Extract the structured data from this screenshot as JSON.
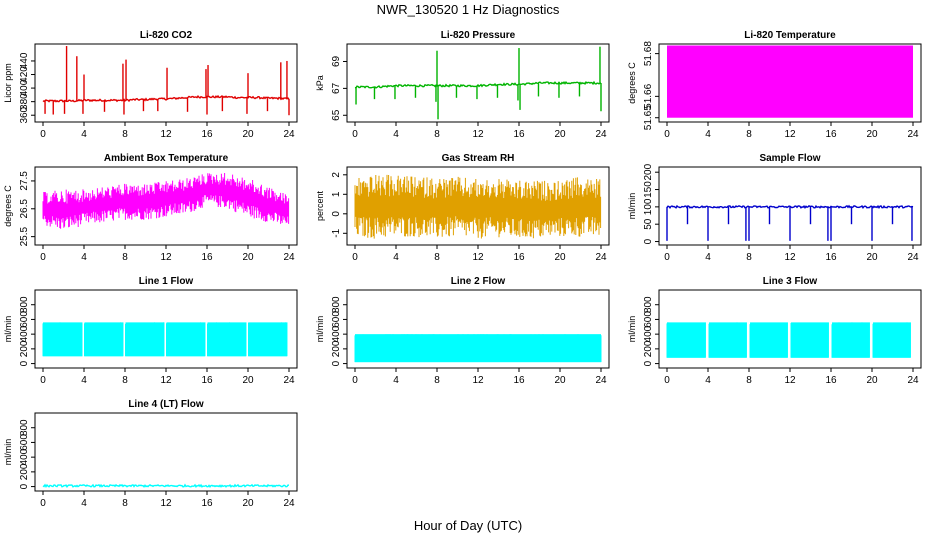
{
  "title": "NWR_130520  1 Hz Diagnostics",
  "xlabel": "Hour of Day (UTC)",
  "chart_data": [
    {
      "type": "line",
      "title": "Li-820 CO2",
      "ylabel": "Licor ppm",
      "color": "#e00000",
      "x_ticks": [
        0,
        4,
        8,
        12,
        16,
        20,
        24
      ],
      "xlim": [
        0,
        24
      ],
      "y_ticks": [
        360,
        380,
        400,
        420,
        440
      ],
      "ylim": [
        350,
        465
      ],
      "style": "line",
      "series": [
        {
          "values": [
            [
              0,
              381
            ],
            [
              1,
              381
            ],
            [
              2,
              381
            ],
            [
              3,
              381
            ],
            [
              4,
              382
            ],
            [
              5,
              382
            ],
            [
              6,
              382
            ],
            [
              7,
              382
            ],
            [
              8,
              382
            ],
            [
              9,
              383
            ],
            [
              10,
              383
            ],
            [
              11,
              384
            ],
            [
              12,
              384
            ],
            [
              13,
              385
            ],
            [
              14,
              386
            ],
            [
              15,
              387
            ],
            [
              16,
              387
            ],
            [
              17,
              387
            ],
            [
              18,
              387
            ],
            [
              19,
              386
            ],
            [
              20,
              386
            ],
            [
              21,
              386
            ],
            [
              22,
              385
            ],
            [
              23,
              385
            ],
            [
              24,
              384
            ]
          ]
        },
        {
          "values": [
            [
              2.3,
              462
            ],
            [
              3.3,
              447
            ],
            [
              4.0,
              420
            ],
            [
              7.8,
              436
            ],
            [
              8.1,
              442
            ],
            [
              12.1,
              430
            ],
            [
              15.9,
              428
            ],
            [
              16.1,
              434
            ],
            [
              20.0,
              422
            ],
            [
              23.2,
              438
            ],
            [
              23.8,
              440
            ]
          ]
        },
        {
          "values": [
            [
              0.2,
              362
            ],
            [
              1.0,
              361
            ],
            [
              2.1,
              362
            ],
            [
              3.9,
              362
            ],
            [
              6.0,
              365
            ],
            [
              7.9,
              361
            ],
            [
              9.8,
              366
            ],
            [
              11.2,
              366
            ],
            [
              14.1,
              365
            ],
            [
              16.0,
              361
            ],
            [
              17.5,
              366
            ],
            [
              19.9,
              362
            ],
            [
              21.9,
              366
            ],
            [
              24.0,
              360
            ]
          ]
        }
      ]
    },
    {
      "type": "line",
      "title": "Li-820 Pressure",
      "ylabel": "kPa",
      "color": "#00b400",
      "x_ticks": [
        0,
        4,
        8,
        12,
        16,
        20,
        24
      ],
      "xlim": [
        0,
        24
      ],
      "y_ticks": [
        65,
        67,
        69
      ],
      "ylim": [
        64.5,
        70.3
      ],
      "style": "line",
      "series": [
        {
          "values": [
            [
              0,
              67.1
            ],
            [
              2,
              67.1
            ],
            [
              4,
              67.2
            ],
            [
              6,
              67.2
            ],
            [
              8,
              67.2
            ],
            [
              10,
              67.2
            ],
            [
              12,
              67.2
            ],
            [
              14,
              67.3
            ],
            [
              16,
              67.3
            ],
            [
              18,
              67.4
            ],
            [
              20,
              67.4
            ],
            [
              22,
              67.4
            ],
            [
              24,
              67.4
            ]
          ]
        },
        {
          "values": [
            [
              8.0,
              69.8
            ],
            [
              16.0,
              70.0
            ],
            [
              23.9,
              70.1
            ]
          ]
        },
        {
          "values": [
            [
              0.1,
              65.8
            ],
            [
              1.9,
              66.2
            ],
            [
              3.9,
              66.2
            ],
            [
              5.9,
              66.3
            ],
            [
              7.9,
              66.0
            ],
            [
              8.1,
              64.7
            ],
            [
              9.9,
              66.3
            ],
            [
              11.9,
              66.2
            ],
            [
              13.9,
              66.3
            ],
            [
              15.9,
              66.1
            ],
            [
              16.1,
              65.4
            ],
            [
              17.9,
              66.4
            ],
            [
              19.9,
              66.3
            ],
            [
              21.9,
              66.4
            ],
            [
              24.0,
              65.3
            ]
          ]
        }
      ]
    },
    {
      "type": "area",
      "title": "Li-820 Temperature",
      "ylabel": "degrees C",
      "color": "#ff00ff",
      "x_ticks": [
        0,
        4,
        8,
        12,
        16,
        20,
        24
      ],
      "xlim": [
        0,
        24
      ],
      "y_ticks": [
        51.65,
        51.66,
        51.68
      ],
      "ylim": [
        51.648,
        51.6845
      ],
      "style": "band",
      "series": [
        {
          "values": [
            [
              0,
              51.65,
              51.6838
            ],
            [
              24,
              51.65,
              51.6838
            ]
          ]
        }
      ]
    },
    {
      "type": "area",
      "title": "Ambient Box Temperature",
      "ylabel": "degrees C",
      "color": "#ff00ff",
      "x_ticks": [
        0,
        4,
        8,
        12,
        16,
        20,
        24
      ],
      "xlim": [
        0,
        24
      ],
      "y_ticks": [
        25.5,
        26.5,
        27.5
      ],
      "ylim": [
        25.2,
        28.0
      ],
      "style": "band",
      "series": [
        {
          "values": [
            [
              0,
              25.9,
              27.1
            ],
            [
              2,
              25.7,
              27.2
            ],
            [
              4,
              25.9,
              27.2
            ],
            [
              6,
              26.0,
              27.3
            ],
            [
              8,
              26.1,
              27.4
            ],
            [
              10,
              26.1,
              27.4
            ],
            [
              12,
              26.2,
              27.5
            ],
            [
              14,
              26.3,
              27.6
            ],
            [
              16,
              26.6,
              27.8
            ],
            [
              18,
              26.5,
              27.8
            ],
            [
              20,
              26.2,
              27.6
            ],
            [
              22,
              26.0,
              27.3
            ],
            [
              24,
              25.8,
              27.0
            ]
          ]
        }
      ]
    },
    {
      "type": "area",
      "title": "Gas Stream RH",
      "ylabel": "percent",
      "color": "#e0a000",
      "x_ticks": [
        0,
        4,
        8,
        12,
        16,
        20,
        24
      ],
      "xlim": [
        0,
        24
      ],
      "y_ticks": [
        -1,
        0,
        1,
        2
      ],
      "ylim": [
        -1.6,
        2.4
      ],
      "style": "band",
      "series": [
        {
          "values": [
            [
              0,
              -1.2,
              1.9
            ],
            [
              2,
              -1.3,
              2.0
            ],
            [
              4,
              -1.2,
              2.0
            ],
            [
              6,
              -1.2,
              1.9
            ],
            [
              8,
              -1.3,
              1.9
            ],
            [
              10,
              -1.2,
              1.9
            ],
            [
              12,
              -1.3,
              1.8
            ],
            [
              14,
              -1.2,
              1.8
            ],
            [
              16,
              -1.3,
              1.7
            ],
            [
              18,
              -1.3,
              1.7
            ],
            [
              20,
              -1.2,
              1.7
            ],
            [
              22,
              -1.2,
              1.9
            ],
            [
              24,
              -1.2,
              1.8
            ]
          ]
        }
      ]
    },
    {
      "type": "line",
      "title": "Sample Flow",
      "ylabel": "ml/min",
      "color": "#0000cc",
      "x_ticks": [
        0,
        4,
        8,
        12,
        16,
        20,
        24
      ],
      "xlim": [
        0,
        24
      ],
      "y_ticks": [
        0,
        50,
        100,
        150,
        200
      ],
      "ylim": [
        -10,
        215
      ],
      "style": "line",
      "series": [
        {
          "values": [
            [
              0,
              100
            ],
            [
              24,
              100
            ]
          ]
        },
        {
          "values": [
            [
              0.0,
              2
            ],
            [
              2.0,
              50
            ],
            [
              4.0,
              2
            ],
            [
              6.0,
              50
            ],
            [
              7.7,
              2
            ],
            [
              8.0,
              2
            ],
            [
              10.0,
              50
            ],
            [
              12.0,
              2
            ],
            [
              14.0,
              50
            ],
            [
              15.7,
              2
            ],
            [
              16.0,
              2
            ],
            [
              18.0,
              50
            ],
            [
              20.0,
              2
            ],
            [
              22.0,
              50
            ],
            [
              23.9,
              2
            ]
          ]
        }
      ]
    },
    {
      "type": "area",
      "title": "Line 1 Flow",
      "ylabel": "ml/min",
      "color": "#00ffff",
      "x_ticks": [
        0,
        4,
        8,
        12,
        16,
        20,
        24
      ],
      "xlim": [
        0,
        24
      ],
      "y_ticks": [
        0,
        200,
        400,
        600,
        800
      ],
      "ylim": [
        -60,
        1000
      ],
      "style": "segments",
      "series": [
        {
          "values": [
            [
              0,
              3.85,
              100,
              560
            ],
            [
              4.05,
              7.85,
              100,
              560
            ],
            [
              8.05,
              11.85,
              100,
              560
            ],
            [
              12.05,
              15.85,
              100,
              560
            ],
            [
              16.05,
              19.85,
              100,
              560
            ],
            [
              20.05,
              23.85,
              100,
              560
            ]
          ]
        }
      ]
    },
    {
      "type": "area",
      "title": "Line 2 Flow",
      "ylabel": "ml/min",
      "color": "#00ffff",
      "x_ticks": [
        0,
        4,
        8,
        12,
        16,
        20,
        24
      ],
      "xlim": [
        0,
        24
      ],
      "y_ticks": [
        0,
        200,
        400,
        600,
        800
      ],
      "ylim": [
        -60,
        1000
      ],
      "style": "segments",
      "series": [
        {
          "values": [
            [
              0,
              24,
              20,
              400
            ]
          ]
        }
      ]
    },
    {
      "type": "area",
      "title": "Line 3 Flow",
      "ylabel": "ml/min",
      "color": "#00ffff",
      "x_ticks": [
        0,
        4,
        8,
        12,
        16,
        20,
        24
      ],
      "xlim": [
        0,
        24
      ],
      "y_ticks": [
        0,
        200,
        400,
        600,
        800
      ],
      "ylim": [
        -60,
        1000
      ],
      "style": "segments",
      "series": [
        {
          "values": [
            [
              0,
              3.8,
              80,
              560
            ],
            [
              4.1,
              7.8,
              80,
              560
            ],
            [
              8.1,
              11.8,
              80,
              560
            ],
            [
              12.1,
              15.8,
              80,
              560
            ],
            [
              16.1,
              19.8,
              80,
              560
            ],
            [
              20.1,
              23.8,
              80,
              560
            ]
          ]
        }
      ]
    },
    {
      "type": "line",
      "title": "Line 4 (LT) Flow",
      "ylabel": "ml/min",
      "color": "#00ffff",
      "x_ticks": [
        0,
        4,
        8,
        12,
        16,
        20,
        24
      ],
      "xlim": [
        0,
        24
      ],
      "y_ticks": [
        0,
        200,
        400,
        600,
        800
      ],
      "ylim": [
        -60,
        1000
      ],
      "style": "line",
      "series": [
        {
          "values": [
            [
              0,
              10
            ],
            [
              24,
              10
            ]
          ]
        }
      ]
    }
  ]
}
